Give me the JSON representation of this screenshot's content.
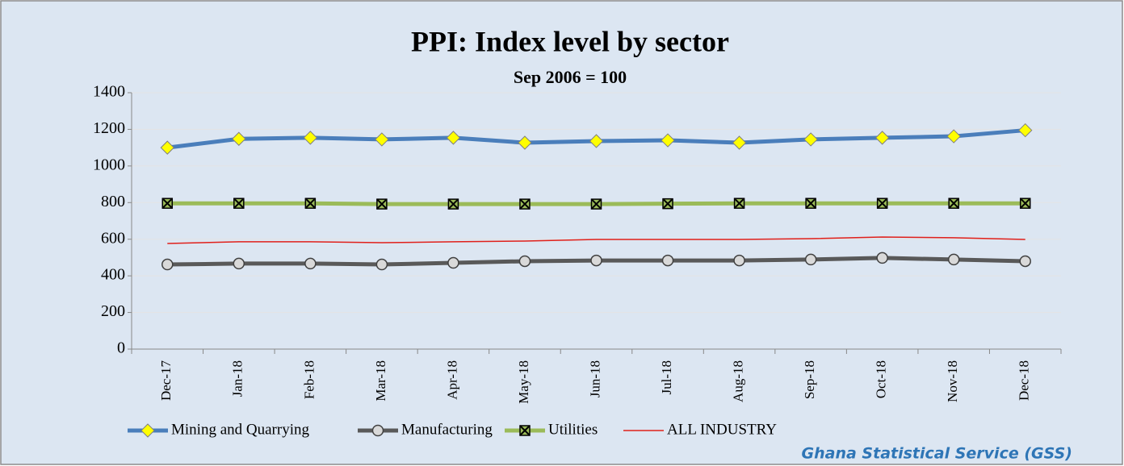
{
  "chart_data": {
    "type": "line",
    "title": "PPI:  Index level by sector",
    "subtitle": "Sep 2006 = 100",
    "categories": [
      "Dec-17",
      "Jan-18",
      "Feb-18",
      "Mar-18",
      "Apr-18",
      "May-18",
      "Jun-18",
      "Jul-18",
      "Aug-18",
      "Sep-18",
      "Oct-18",
      "Nov-18",
      "Dec-18"
    ],
    "series": [
      {
        "name": "Mining and Quarrying",
        "color": "#4a7ebb",
        "marker": "diamond",
        "values": [
          1100,
          1148,
          1154,
          1145,
          1154,
          1127,
          1136,
          1140,
          1127,
          1145,
          1154,
          1162,
          1195
        ]
      },
      {
        "name": "Manufacturing",
        "color": "#595959",
        "marker": "circle",
        "values": [
          462,
          467,
          467,
          462,
          471,
          480,
          484,
          484,
          484,
          489,
          498,
          489,
          480
        ]
      },
      {
        "name": "Utilities",
        "color": "#9bbb59",
        "marker": "square",
        "values": [
          796,
          796,
          796,
          792,
          792,
          792,
          792,
          794,
          796,
          796,
          796,
          796,
          796
        ]
      },
      {
        "name": "ALL INDUSTRY",
        "color": "#e0201b",
        "marker": "none",
        "values": [
          577,
          586,
          586,
          581,
          586,
          590,
          599,
          599,
          599,
          603,
          612,
          608,
          599
        ]
      }
    ],
    "ylim": [
      0,
      1400
    ],
    "yticks": [
      0,
      200,
      400,
      600,
      800,
      1000,
      1200,
      1400
    ],
    "grid": true,
    "source": "Ghana Statistical Service (GSS)"
  }
}
